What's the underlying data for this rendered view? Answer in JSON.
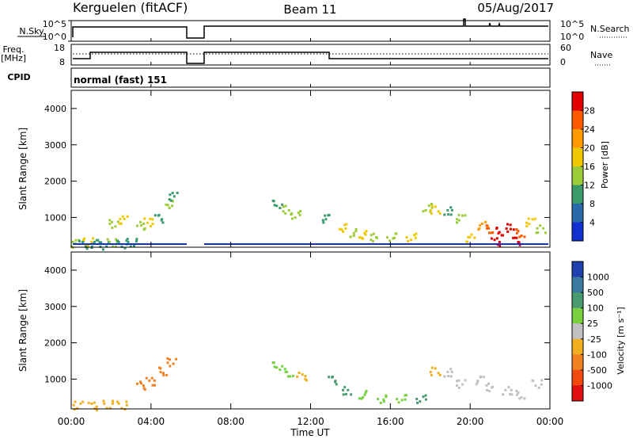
{
  "header": {
    "station": "Kerguelen (fitACF)",
    "beam": "Beam 11",
    "date": "05/Aug/2017"
  },
  "panels": {
    "nsky_label": "N.Sky",
    "nsky_ticks": [
      "10^5",
      "10^0"
    ],
    "nsearch_label": "N.Search",
    "nsearch_ticks": [
      "10^5",
      "10^0"
    ],
    "freq_label_1": "Freq.",
    "freq_label_2": "[MHz]",
    "freq_ticks": [
      "18",
      "8"
    ],
    "nave_label": "Nave",
    "nave_ticks": [
      "60",
      "0"
    ],
    "cpid_label": "CPID",
    "cpid_text": "normal (fast) 151"
  },
  "axes": {
    "ylabel": "Slant Range [km]",
    "xlabel": "Time UT",
    "yticks": [
      "4000",
      "3000",
      "2000",
      "1000"
    ],
    "xticks": [
      "00:00",
      "04:00",
      "08:00",
      "12:00",
      "16:00",
      "20:00",
      "00:00"
    ]
  },
  "power_scale": {
    "label": "Power [dB]",
    "ticks": [
      "28",
      "24",
      "20",
      "16",
      "12",
      "8",
      "4"
    ],
    "colors": [
      "#e00000",
      "#ff5a00",
      "#ff9a00",
      "#f0c800",
      "#9ccc3a",
      "#3a9a6a",
      "#2a6aaa",
      "#1030d0"
    ]
  },
  "velocity_scale": {
    "label": "Velocity [m s⁻¹]",
    "ticks": [
      "1000",
      "500",
      "100",
      "25",
      "-25",
      "-100",
      "-500",
      "-1000"
    ],
    "colors": [
      "#2040b0",
      "#3a7aa0",
      "#4a9a70",
      "#78d040",
      "#c0c0c0",
      "#f0b020",
      "#f08020",
      "#f04a10",
      "#e01010"
    ]
  },
  "chart_data": [
    {
      "type": "heatmap",
      "title": "Power",
      "xlabel": "Time UT",
      "ylabel": "Slant Range [km]",
      "xlim": [
        0,
        24
      ],
      "ylim": [
        180,
        4500
      ],
      "colorbar": "Power [dB]",
      "clim": [
        0,
        30
      ],
      "cells": [
        [
          0.2,
          300,
          12
        ],
        [
          0.5,
          280,
          8
        ],
        [
          0.8,
          350,
          16
        ],
        [
          1.2,
          300,
          10
        ],
        [
          1.6,
          260,
          8
        ],
        [
          2.0,
          320,
          12
        ],
        [
          2.5,
          290,
          8
        ],
        [
          3.0,
          330,
          10
        ],
        [
          3.4,
          800,
          12
        ],
        [
          3.8,
          900,
          16
        ],
        [
          4.3,
          1000,
          10
        ],
        [
          4.8,
          1400,
          14
        ],
        [
          5.1,
          1600,
          8
        ],
        [
          2.1,
          850,
          14
        ],
        [
          2.6,
          950,
          18
        ],
        [
          10.3,
          1400,
          10
        ],
        [
          10.8,
          1250,
          14
        ],
        [
          11.2,
          1100,
          12
        ],
        [
          12.8,
          1000,
          10
        ],
        [
          13.5,
          750,
          16
        ],
        [
          14.0,
          600,
          12
        ],
        [
          14.5,
          550,
          18
        ],
        [
          15.2,
          480,
          14
        ],
        [
          16.0,
          500,
          12
        ],
        [
          17.0,
          480,
          16
        ],
        [
          17.8,
          1300,
          12
        ],
        [
          18.2,
          1250,
          16
        ],
        [
          18.8,
          1200,
          10
        ],
        [
          19.5,
          1000,
          12
        ],
        [
          20.0,
          450,
          18
        ],
        [
          20.6,
          800,
          20
        ],
        [
          21.0,
          700,
          26
        ],
        [
          21.5,
          650,
          28
        ],
        [
          22.0,
          750,
          30
        ],
        [
          22.5,
          600,
          24
        ],
        [
          23.0,
          900,
          16
        ],
        [
          23.5,
          700,
          12
        ],
        [
          21.2,
          350,
          30
        ],
        [
          22.2,
          380,
          30
        ]
      ]
    },
    {
      "type": "heatmap",
      "title": "Velocity",
      "xlabel": "Time UT",
      "ylabel": "Slant Range [km]",
      "xlim": [
        0,
        24
      ],
      "ylim": [
        180,
        4500
      ],
      "colorbar": "Velocity [m s⁻¹]",
      "clim": [
        -1000,
        1000
      ],
      "cells": [
        [
          0.3,
          300,
          -60
        ],
        [
          1.0,
          280,
          -80
        ],
        [
          1.8,
          320,
          -40
        ],
        [
          2.5,
          300,
          -60
        ],
        [
          3.4,
          850,
          -300
        ],
        [
          3.9,
          950,
          -250
        ],
        [
          4.6,
          1250,
          -300
        ],
        [
          5.0,
          1500,
          -400
        ],
        [
          10.3,
          1400,
          80
        ],
        [
          10.9,
          1200,
          60
        ],
        [
          11.5,
          1100,
          -60
        ],
        [
          13.0,
          1000,
          200
        ],
        [
          13.8,
          700,
          200
        ],
        [
          14.5,
          600,
          80
        ],
        [
          15.5,
          480,
          80
        ],
        [
          16.5,
          500,
          80
        ],
        [
          17.5,
          480,
          200
        ],
        [
          18.2,
          1250,
          -80
        ],
        [
          18.8,
          1200,
          0
        ],
        [
          19.5,
          900,
          0
        ],
        [
          20.5,
          1000,
          0
        ],
        [
          21.0,
          800,
          0
        ],
        [
          21.8,
          700,
          0
        ],
        [
          22.5,
          600,
          0
        ],
        [
          23.3,
          900,
          0
        ]
      ]
    }
  ]
}
